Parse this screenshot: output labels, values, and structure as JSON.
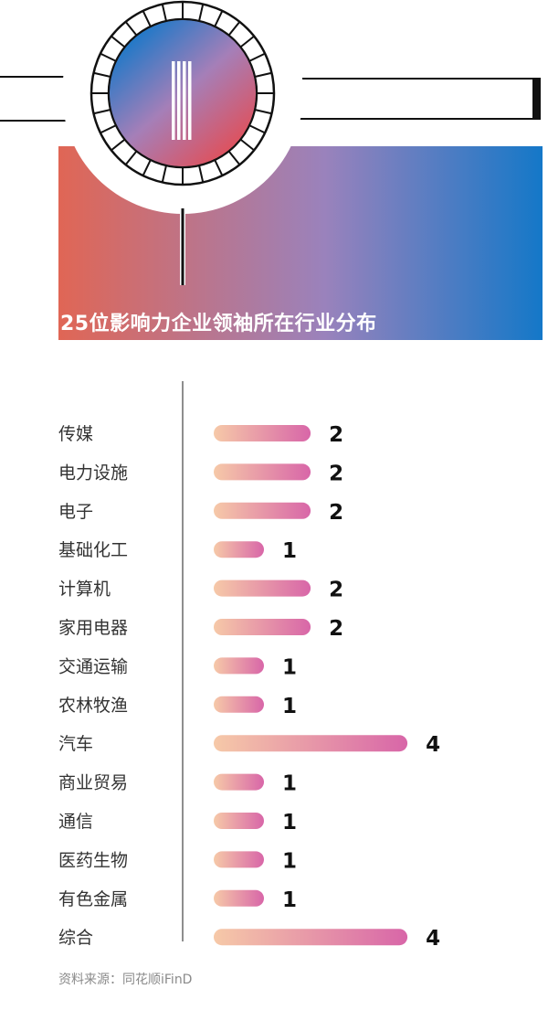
{
  "banner": {
    "title": "25位影响力企业领袖所在行业分布"
  },
  "colors": {
    "banner_left": "#e06655",
    "banner_mid": "#9a82bc",
    "banner_right": "#1478c8",
    "bar_start": "#f6c9a8",
    "bar_end": "#d866a8"
  },
  "chart_data": {
    "type": "bar",
    "orientation": "horizontal",
    "title": "25位影响力企业领袖所在行业分布",
    "categories": [
      "传媒",
      "电力设施",
      "电子",
      "基础化工",
      "计算机",
      "家用电器",
      "交通运输",
      "农林牧渔",
      "汽车",
      "商业贸易",
      "通信",
      "医药生物",
      "有色金属",
      "综合"
    ],
    "values": [
      2,
      2,
      2,
      1,
      2,
      2,
      1,
      1,
      4,
      1,
      1,
      1,
      1,
      4
    ],
    "xlim": [
      0,
      4
    ],
    "grid": false,
    "data_labels": true
  },
  "source": "资料来源：同花顺iFinD"
}
